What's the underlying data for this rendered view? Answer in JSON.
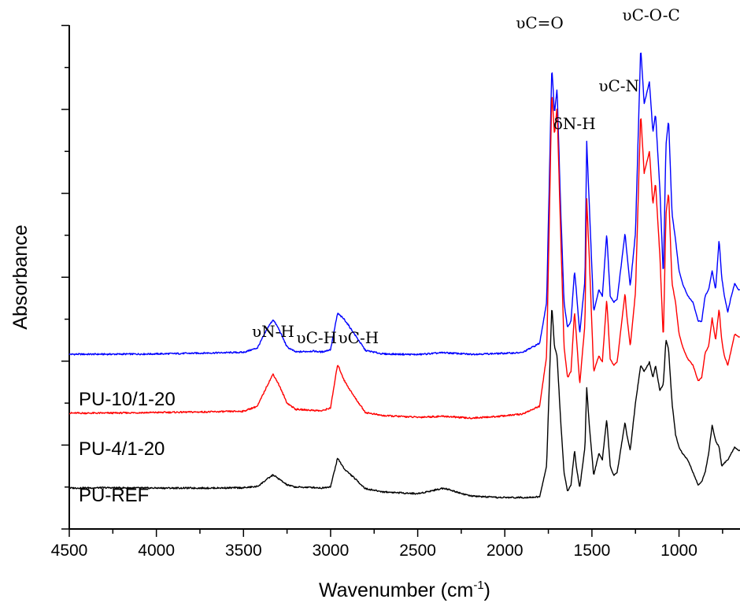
{
  "chart_data": {
    "type": "line",
    "title": "",
    "xlabel": "Wavenumber (cm",
    "xlabel_sup": "-1",
    "xlabel_end": ")",
    "ylabel": "Absorbance",
    "xlim": [
      4500,
      650
    ],
    "x_reversed": true,
    "yticks_labeled": false,
    "grid": false,
    "x_ticks": [
      4500,
      4000,
      3500,
      3000,
      2500,
      2000,
      1500,
      1000
    ],
    "x_tick_labels": [
      "4500",
      "4000",
      "3500",
      "3000",
      "2500",
      "2000",
      "1500",
      "1000"
    ],
    "annotations": [
      {
        "text": "υN-H",
        "x": 3330
      },
      {
        "text": "υC-H",
        "x": 3080
      },
      {
        "text": "υC-H",
        "x": 2840
      },
      {
        "text": "υC=O",
        "x": 1800
      },
      {
        "text": "δN-H",
        "x": 1600
      },
      {
        "text": "υC-N",
        "x": 1345
      },
      {
        "text": "υC-O-C",
        "x": 1160
      }
    ],
    "series": [
      {
        "name": "PU-10/1-20",
        "color": "#0000ff",
        "points": [
          [
            4500,
            0.555
          ],
          [
            4300,
            0.555
          ],
          [
            4000,
            0.556
          ],
          [
            3700,
            0.559
          ],
          [
            3500,
            0.561
          ],
          [
            3420,
            0.575
          ],
          [
            3360,
            0.64
          ],
          [
            3330,
            0.665
          ],
          [
            3300,
            0.638
          ],
          [
            3250,
            0.578
          ],
          [
            3200,
            0.562
          ],
          [
            3100,
            0.565
          ],
          [
            3050,
            0.562
          ],
          [
            3000,
            0.57
          ],
          [
            2960,
            0.685
          ],
          [
            2920,
            0.665
          ],
          [
            2870,
            0.625
          ],
          [
            2800,
            0.567
          ],
          [
            2700,
            0.556
          ],
          [
            2500,
            0.554
          ],
          [
            2350,
            0.56
          ],
          [
            2200,
            0.555
          ],
          [
            2050,
            0.557
          ],
          [
            1900,
            0.56
          ],
          [
            1800,
            0.59
          ],
          [
            1760,
            0.72
          ],
          [
            1730,
            1.47
          ],
          [
            1715,
            1.32
          ],
          [
            1700,
            1.4
          ],
          [
            1680,
            1.03
          ],
          [
            1660,
            0.72
          ],
          [
            1640,
            0.64
          ],
          [
            1620,
            0.66
          ],
          [
            1600,
            0.82
          ],
          [
            1590,
            0.76
          ],
          [
            1570,
            0.62
          ],
          [
            1540,
            0.79
          ],
          [
            1530,
            1.23
          ],
          [
            1515,
            1.03
          ],
          [
            1490,
            0.69
          ],
          [
            1460,
            0.76
          ],
          [
            1440,
            0.74
          ],
          [
            1415,
            0.94
          ],
          [
            1395,
            0.74
          ],
          [
            1375,
            0.72
          ],
          [
            1355,
            0.73
          ],
          [
            1310,
            0.94
          ],
          [
            1300,
            0.88
          ],
          [
            1280,
            0.77
          ],
          [
            1250,
            0.94
          ],
          [
            1220,
            1.53
          ],
          [
            1200,
            1.35
          ],
          [
            1170,
            1.42
          ],
          [
            1150,
            1.26
          ],
          [
            1135,
            1.32
          ],
          [
            1110,
            1.08
          ],
          [
            1090,
            0.8
          ],
          [
            1075,
            1.22
          ],
          [
            1060,
            1.3
          ],
          [
            1040,
            1.0
          ],
          [
            1020,
            0.92
          ],
          [
            1000,
            0.82
          ],
          [
            980,
            0.78
          ],
          [
            950,
            0.74
          ],
          [
            920,
            0.72
          ],
          [
            890,
            0.66
          ],
          [
            870,
            0.66
          ],
          [
            850,
            0.74
          ],
          [
            830,
            0.76
          ],
          [
            810,
            0.82
          ],
          [
            790,
            0.76
          ],
          [
            770,
            0.92
          ],
          [
            755,
            0.8
          ],
          [
            740,
            0.74
          ],
          [
            720,
            0.69
          ],
          [
            700,
            0.74
          ],
          [
            680,
            0.78
          ],
          [
            660,
            0.76
          ],
          [
            650,
            0.76
          ]
        ]
      },
      {
        "name": "PU-4/1-20",
        "color": "#ff0000",
        "points": [
          [
            4500,
            0.368
          ],
          [
            4300,
            0.368
          ],
          [
            4000,
            0.37
          ],
          [
            3700,
            0.372
          ],
          [
            3500,
            0.374
          ],
          [
            3420,
            0.39
          ],
          [
            3360,
            0.46
          ],
          [
            3330,
            0.492
          ],
          [
            3300,
            0.462
          ],
          [
            3250,
            0.4
          ],
          [
            3200,
            0.38
          ],
          [
            3100,
            0.377
          ],
          [
            3050,
            0.375
          ],
          [
            3000,
            0.385
          ],
          [
            2960,
            0.523
          ],
          [
            2920,
            0.47
          ],
          [
            2870,
            0.425
          ],
          [
            2800,
            0.37
          ],
          [
            2700,
            0.36
          ],
          [
            2500,
            0.355
          ],
          [
            2350,
            0.358
          ],
          [
            2200,
            0.352
          ],
          [
            2050,
            0.357
          ],
          [
            1900,
            0.365
          ],
          [
            1800,
            0.39
          ],
          [
            1760,
            0.55
          ],
          [
            1730,
            1.39
          ],
          [
            1715,
            1.25
          ],
          [
            1700,
            1.34
          ],
          [
            1680,
            0.95
          ],
          [
            1660,
            0.58
          ],
          [
            1640,
            0.48
          ],
          [
            1620,
            0.5
          ],
          [
            1600,
            0.69
          ],
          [
            1590,
            0.62
          ],
          [
            1570,
            0.46
          ],
          [
            1540,
            0.65
          ],
          [
            1530,
            1.05
          ],
          [
            1515,
            0.86
          ],
          [
            1490,
            0.5
          ],
          [
            1460,
            0.55
          ],
          [
            1440,
            0.53
          ],
          [
            1415,
            0.73
          ],
          [
            1395,
            0.54
          ],
          [
            1375,
            0.52
          ],
          [
            1355,
            0.53
          ],
          [
            1310,
            0.75
          ],
          [
            1300,
            0.68
          ],
          [
            1280,
            0.58
          ],
          [
            1250,
            0.75
          ],
          [
            1220,
            1.32
          ],
          [
            1200,
            1.13
          ],
          [
            1170,
            1.2
          ],
          [
            1150,
            1.03
          ],
          [
            1135,
            1.1
          ],
          [
            1110,
            0.87
          ],
          [
            1090,
            0.6
          ],
          [
            1075,
            1.0
          ],
          [
            1060,
            1.07
          ],
          [
            1040,
            0.78
          ],
          [
            1020,
            0.72
          ],
          [
            1000,
            0.62
          ],
          [
            980,
            0.58
          ],
          [
            950,
            0.54
          ],
          [
            920,
            0.52
          ],
          [
            890,
            0.47
          ],
          [
            870,
            0.48
          ],
          [
            850,
            0.56
          ],
          [
            830,
            0.58
          ],
          [
            810,
            0.67
          ],
          [
            790,
            0.6
          ],
          [
            770,
            0.7
          ],
          [
            755,
            0.6
          ],
          [
            740,
            0.55
          ],
          [
            720,
            0.52
          ],
          [
            700,
            0.57
          ],
          [
            680,
            0.62
          ],
          [
            660,
            0.61
          ],
          [
            650,
            0.61
          ]
        ]
      },
      {
        "name": "PU-REF",
        "color": "#000000",
        "points": [
          [
            4500,
            0.13
          ],
          [
            4300,
            0.131
          ],
          [
            4000,
            0.13
          ],
          [
            3700,
            0.13
          ],
          [
            3500,
            0.131
          ],
          [
            3420,
            0.135
          ],
          [
            3360,
            0.16
          ],
          [
            3330,
            0.172
          ],
          [
            3300,
            0.16
          ],
          [
            3250,
            0.14
          ],
          [
            3200,
            0.133
          ],
          [
            3100,
            0.132
          ],
          [
            3050,
            0.13
          ],
          [
            3000,
            0.135
          ],
          [
            2960,
            0.225
          ],
          [
            2920,
            0.19
          ],
          [
            2870,
            0.165
          ],
          [
            2800,
            0.128
          ],
          [
            2700,
            0.118
          ],
          [
            2500,
            0.112
          ],
          [
            2350,
            0.13
          ],
          [
            2200,
            0.105
          ],
          [
            2050,
            0.1
          ],
          [
            1900,
            0.1
          ],
          [
            1800,
            0.102
          ],
          [
            1760,
            0.2
          ],
          [
            1730,
            0.71
          ],
          [
            1715,
            0.58
          ],
          [
            1700,
            0.55
          ],
          [
            1680,
            0.35
          ],
          [
            1660,
            0.18
          ],
          [
            1640,
            0.12
          ],
          [
            1620,
            0.14
          ],
          [
            1600,
            0.25
          ],
          [
            1590,
            0.2
          ],
          [
            1570,
            0.13
          ],
          [
            1540,
            0.26
          ],
          [
            1530,
            0.45
          ],
          [
            1515,
            0.33
          ],
          [
            1490,
            0.17
          ],
          [
            1460,
            0.24
          ],
          [
            1440,
            0.22
          ],
          [
            1415,
            0.35
          ],
          [
            1395,
            0.2
          ],
          [
            1375,
            0.17
          ],
          [
            1355,
            0.18
          ],
          [
            1310,
            0.34
          ],
          [
            1300,
            0.3
          ],
          [
            1280,
            0.25
          ],
          [
            1250,
            0.4
          ],
          [
            1220,
            0.52
          ],
          [
            1200,
            0.5
          ],
          [
            1170,
            0.53
          ],
          [
            1150,
            0.48
          ],
          [
            1135,
            0.52
          ],
          [
            1110,
            0.44
          ],
          [
            1090,
            0.46
          ],
          [
            1075,
            0.6
          ],
          [
            1060,
            0.57
          ],
          [
            1040,
            0.4
          ],
          [
            1020,
            0.3
          ],
          [
            1000,
            0.26
          ],
          [
            980,
            0.24
          ],
          [
            950,
            0.22
          ],
          [
            920,
            0.18
          ],
          [
            890,
            0.14
          ],
          [
            870,
            0.15
          ],
          [
            850,
            0.18
          ],
          [
            830,
            0.24
          ],
          [
            810,
            0.33
          ],
          [
            790,
            0.28
          ],
          [
            770,
            0.26
          ],
          [
            755,
            0.2
          ],
          [
            740,
            0.21
          ],
          [
            720,
            0.22
          ],
          [
            700,
            0.24
          ],
          [
            680,
            0.26
          ],
          [
            660,
            0.25
          ],
          [
            650,
            0.25
          ]
        ]
      }
    ]
  }
}
